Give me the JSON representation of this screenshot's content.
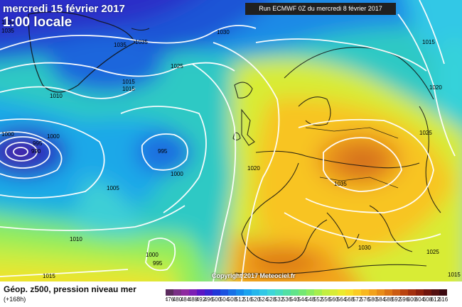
{
  "header": {
    "date_line": "mercredi 15 février 2017",
    "time_line": "1:00 locale",
    "run_label": "Run ECMWF 0Z du mercredi 8 février 2017"
  },
  "footer": {
    "title": "Géop. z500, pression niveau mer",
    "lead": "(+168h)",
    "copyright": "Copyright 2017 Meteociel.fr"
  },
  "isobar_labels": [
    "1030",
    "1035",
    "1035",
    "1035",
    "1015",
    "1030",
    "1025",
    "1015",
    "1010",
    "1000",
    "995",
    "990",
    "1000",
    "995",
    "1005",
    "1000",
    "1010",
    "1015",
    "1000",
    "995",
    "1020",
    "1035",
    "1025",
    "1015",
    "1020",
    "1030",
    "1025",
    "1015"
  ],
  "scale": {
    "labels": [
      "476",
      "480",
      "484",
      "488",
      "492",
      "496",
      "500",
      "504",
      "508",
      "512",
      "516",
      "520",
      "524",
      "528",
      "532",
      "536",
      "540",
      "544",
      "548",
      "552",
      "556",
      "560",
      "564",
      "568",
      "572",
      "576",
      "580",
      "584",
      "588",
      "592",
      "596",
      "600",
      "604",
      "608",
      "612",
      "616"
    ],
    "colors": [
      "#5b2b5e",
      "#7a2f86",
      "#8e2a9f",
      "#7c1fb4",
      "#5a14c4",
      "#3a1fd0",
      "#1f35d8",
      "#1a52e0",
      "#1670e6",
      "#148aea",
      "#1aa2ee",
      "#24b6ec",
      "#30c8e6",
      "#3cd6d8",
      "#46dcc0",
      "#52e0a4",
      "#60e48a",
      "#74e872",
      "#8cec5e",
      "#a6ee4c",
      "#c2ee40",
      "#d8ec36",
      "#ecea2e",
      "#f8de2a",
      "#fbcc24",
      "#f8b820",
      "#f2a21c",
      "#e88c18",
      "#dc7414",
      "#cc5c12",
      "#ba4410",
      "#a4300e",
      "#8c200c",
      "#70140c",
      "#541010",
      "#3c0a10"
    ]
  }
}
